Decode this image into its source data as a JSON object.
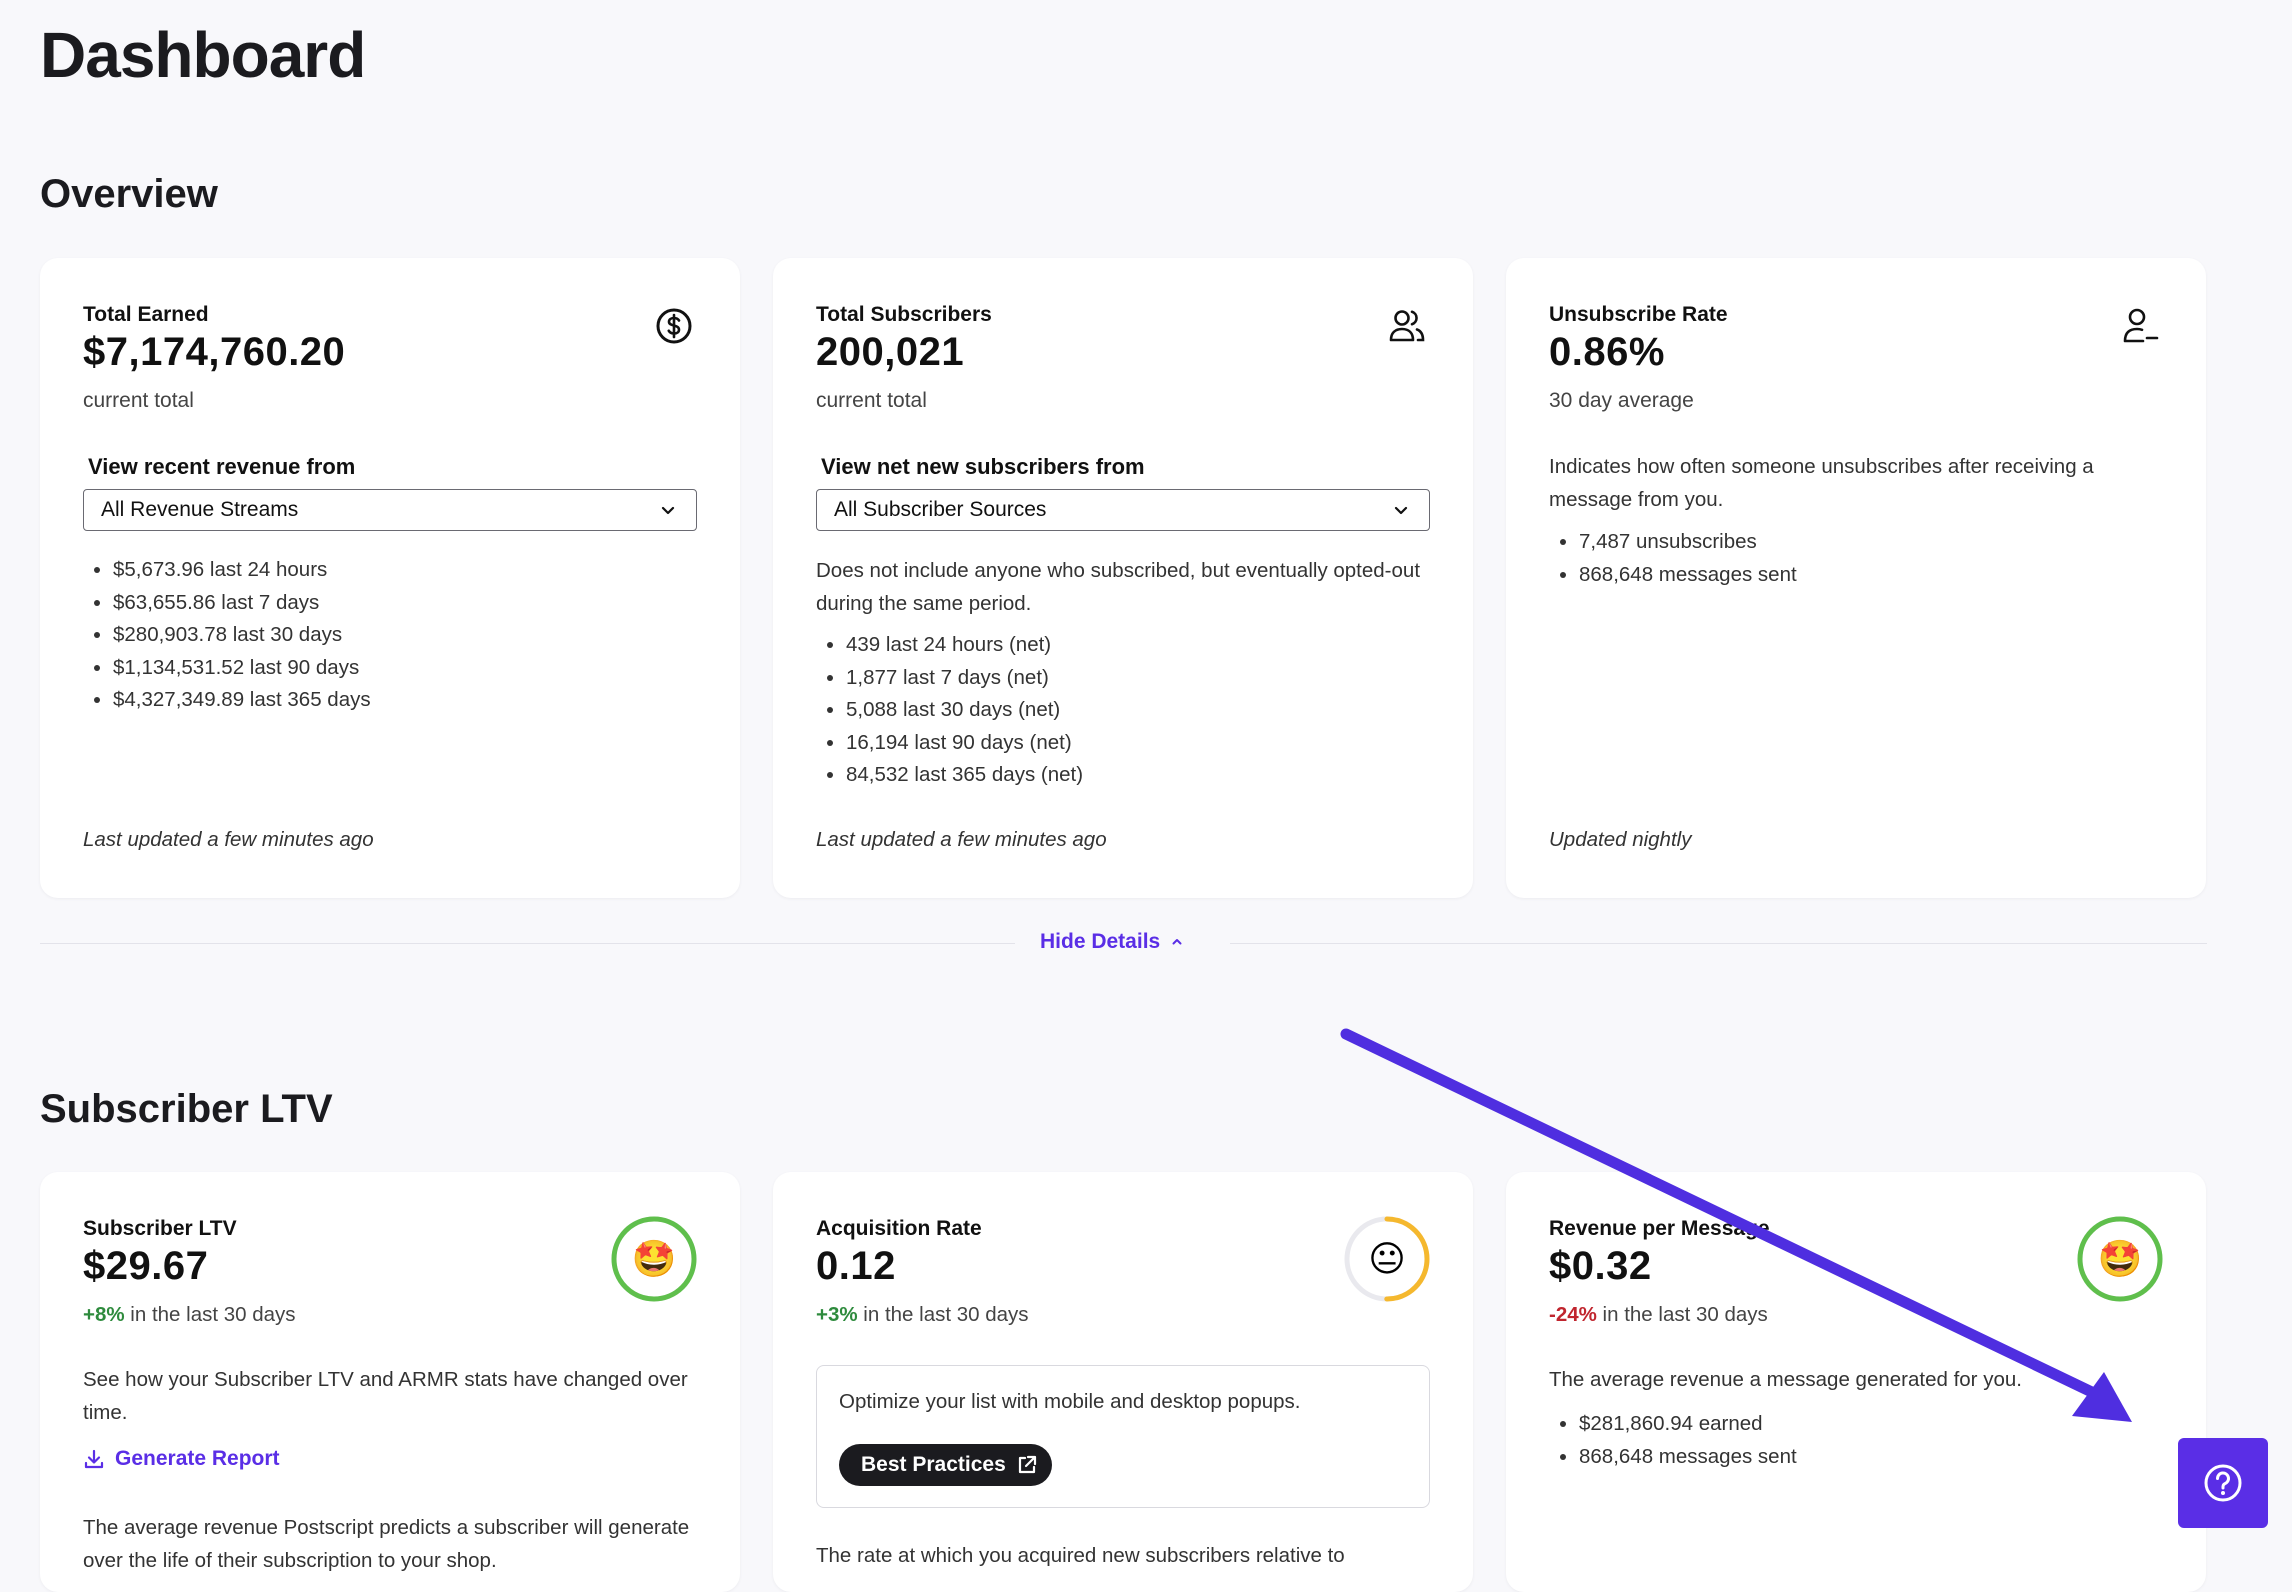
{
  "page": {
    "title": "Dashboard"
  },
  "overview": {
    "heading": "Overview",
    "cards": [
      {
        "title": "Total Earned",
        "value": "$7,174,760.20",
        "subtitle": "current total",
        "icon": "dollar-circle-icon",
        "select_label": "View recent revenue from",
        "select_value": "All Revenue Streams",
        "items": [
          "$5,673.96 last 24 hours",
          "$63,655.86 last 7 days",
          "$280,903.78 last 30 days",
          "$1,134,531.52 last 90 days",
          "$4,327,349.89 last 365 days"
        ],
        "footer": "Last updated a few minutes ago"
      },
      {
        "title": "Total Subscribers",
        "value": "200,021",
        "subtitle": "current total",
        "icon": "users-icon",
        "select_label": "View net new subscribers from",
        "select_value": "All Subscriber Sources",
        "description": "Does not include anyone who subscribed, but eventually opted-out during the same period.",
        "items": [
          "439 last 24 hours (net)",
          "1,877 last 7 days (net)",
          "5,088 last 30 days (net)",
          "16,194 last 90 days (net)",
          "84,532 last 365 days (net)"
        ],
        "footer": "Last updated a few minutes ago"
      },
      {
        "title": "Unsubscribe Rate",
        "value": "0.86%",
        "subtitle": "30 day average",
        "icon": "user-minus-icon",
        "description": "Indicates how often someone unsubscribes after receiving a message from you.",
        "items": [
          "7,487 unsubscribes",
          "868,648 messages sent"
        ],
        "footer": "Updated nightly"
      }
    ],
    "toggle_label": "Hide Details"
  },
  "ltv": {
    "heading": "Subscriber LTV",
    "cards": [
      {
        "title": "Subscriber LTV",
        "value": "$29.67",
        "trend_value": "+8%",
        "trend_text": " in the last 30 days",
        "emoji": "🤩",
        "gauge": 1.0,
        "gauge_color": "#5fbf4c",
        "description": "See how your Subscriber LTV and ARMR stats have changed over time.",
        "link_label": "Generate Report",
        "more_text": "The average revenue Postscript predicts a subscriber will generate over the life of their subscription to your shop."
      },
      {
        "title": "Acquisition Rate",
        "value": "0.12",
        "trend_value": "+3%",
        "trend_text": " in the last 30 days",
        "emoji": "😐",
        "gauge": 0.5,
        "gauge_color": "#f5b82e",
        "promo_text": "Optimize your list with mobile and desktop popups.",
        "promo_button": "Best Practices",
        "more_text": "The rate at which you acquired new subscribers relative to"
      },
      {
        "title": "Revenue per Message",
        "value": "$0.32",
        "trend_value": "-24%",
        "trend_text": " in the last 30 days",
        "emoji": "🤩",
        "gauge": 1.0,
        "gauge_color": "#5fbf4c",
        "description": "The average revenue a message generated for you.",
        "items": [
          "$281,860.94 earned",
          "868,648 messages sent"
        ]
      }
    ]
  },
  "colors": {
    "accent": "#5a2ee6",
    "positive": "#2e8b3d",
    "negative": "#c0252e",
    "background": "#f8f8fb"
  }
}
